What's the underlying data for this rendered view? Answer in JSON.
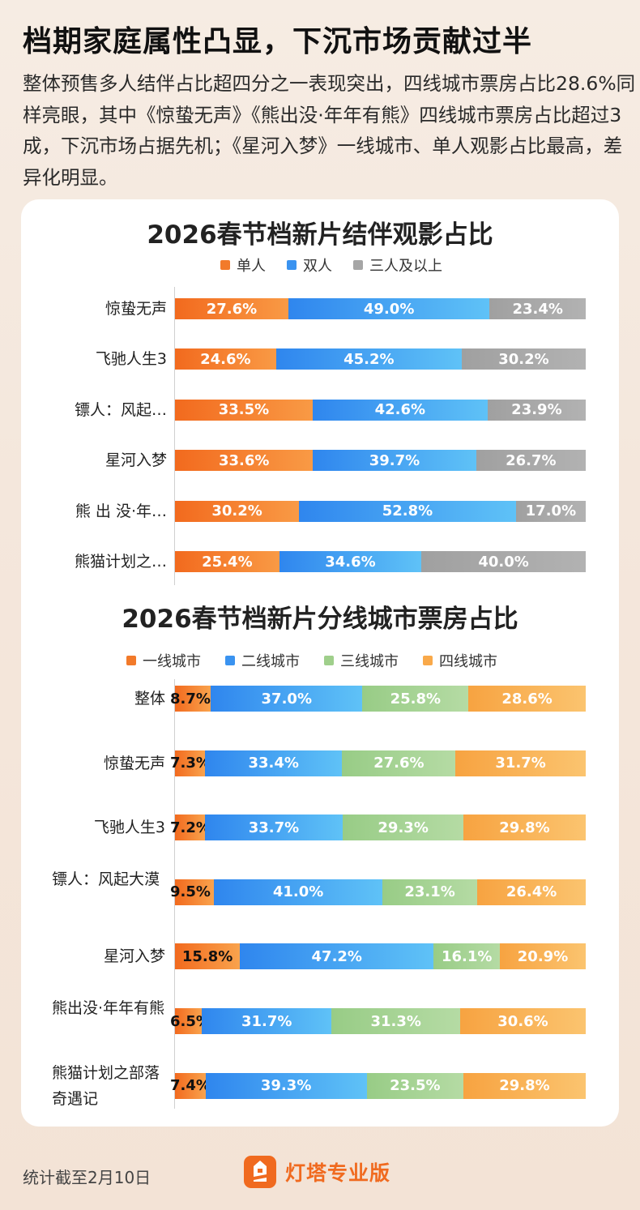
{
  "headline": "档期家庭属性凸显，下沉市场贡献过半",
  "intro": "整体预售多人结伴占比超四分之一表现突出，四线城市票房占比28.6%同样亮眼，其中《惊蛰无声》《熊出没·年年有熊》四线城市票房占比超过3成，下沉市场占据先机；《星河入梦》一线城市、单人观影占比最高，差异化明显。",
  "colors": {
    "orange": "#f27a2a",
    "blue": "#3a93f0",
    "gray": "#a6a6a6",
    "green": "#9fcf8b",
    "lightorange": "#f9a94a"
  },
  "chart_data": [
    {
      "type": "bar",
      "stacked": true,
      "orientation": "horizontal",
      "title": "2026春节档新片结伴观影占比",
      "categories": [
        "惊蛰无声",
        "飞驰人生3",
        "镖人：风起…",
        "星河入梦",
        "熊 出 没·年…",
        "熊猫计划之…"
      ],
      "series": [
        {
          "name": "单人",
          "values": [
            27.6,
            24.6,
            33.5,
            33.6,
            30.2,
            25.4
          ],
          "labels": [
            "27.6%",
            "24.6%",
            "33.5%",
            "33.6%",
            "30.2%",
            "25.4%"
          ]
        },
        {
          "name": "双人",
          "values": [
            49.0,
            45.2,
            42.6,
            39.7,
            52.8,
            34.6
          ],
          "labels": [
            "49.0%",
            "45.2%",
            "42.6%",
            "39.7%",
            "52.8%",
            "34.6%"
          ]
        },
        {
          "name": "三人及以上",
          "values": [
            23.4,
            30.2,
            23.9,
            26.7,
            17.0,
            40.0
          ],
          "labels": [
            "23.4%",
            "30.2%",
            "23.9%",
            "26.7%",
            "17.0%",
            "40.0%"
          ]
        }
      ],
      "legend_position": "top-center"
    },
    {
      "type": "bar",
      "stacked": true,
      "orientation": "horizontal",
      "title": "2026春节档新片分线城市票房占比",
      "categories": [
        "整体",
        "惊蛰无声",
        "飞驰人生3",
        "镖人：风起大漠",
        "星河入梦",
        "熊出没·年年有熊",
        "熊猫计划之部落奇遇记"
      ],
      "series": [
        {
          "name": "一线城市",
          "values": [
            8.7,
            7.3,
            7.2,
            9.5,
            15.8,
            6.5,
            7.4
          ],
          "labels": [
            "8.7%",
            "7.3%",
            "7.2%",
            "9.5%",
            "15.8%",
            "6.5%",
            "7.4%"
          ]
        },
        {
          "name": "二线城市",
          "values": [
            37.0,
            33.4,
            33.7,
            41.0,
            47.2,
            31.7,
            39.3
          ],
          "labels": [
            "37.0%",
            "33.4%",
            "33.7%",
            "41.0%",
            "47.2%",
            "31.7%",
            "39.3%"
          ]
        },
        {
          "name": "三线城市",
          "values": [
            25.8,
            27.6,
            29.3,
            23.1,
            16.1,
            31.3,
            23.5
          ],
          "labels": [
            "25.8%",
            "27.6%",
            "29.3%",
            "23.1%",
            "16.1%",
            "31.3%",
            "23.5%"
          ]
        },
        {
          "name": "四线城市",
          "values": [
            28.6,
            31.7,
            29.8,
            26.4,
            20.9,
            30.6,
            29.8
          ],
          "labels": [
            "28.6%",
            "31.7%",
            "29.8%",
            "26.4%",
            "20.9%",
            "30.6%",
            "29.8%"
          ]
        }
      ],
      "legend_position": "top-center"
    }
  ],
  "footer": {
    "note": "统计截至2月10日",
    "brand": "灯塔专业版",
    "logo_icon": "lighthouse-logo-icon"
  }
}
